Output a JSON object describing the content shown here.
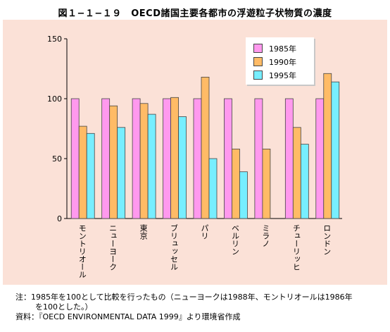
{
  "title": "図１−１−１９　OECD諸国主要各都市の浮遊粒子状物質の濃度",
  "colors": {
    "panel_background": "#fbe1d7",
    "series_1985": "#ff99ee",
    "series_1990": "#ffbb66",
    "series_1995": "#77eeff"
  },
  "chart_data": {
    "type": "bar",
    "title": "",
    "xlabel": "",
    "ylabel": "",
    "ylim": [
      0,
      150
    ],
    "yticks": [
      0,
      50,
      100,
      150
    ],
    "grid": false,
    "legend_position": "top-right",
    "categories": [
      "モントリオール",
      "ニューヨーク",
      "東京",
      "ブリュッセル",
      "パリ",
      "ベルリン",
      "ミラノ",
      "チューリッヒ",
      "ロンドン"
    ],
    "series": [
      {
        "name": "1985年",
        "color": "#ff99ee",
        "values": [
          100,
          100,
          100,
          100,
          100,
          100,
          100,
          100,
          100
        ]
      },
      {
        "name": "1990年",
        "color": "#ffbb66",
        "values": [
          77,
          94,
          96,
          101,
          118,
          58,
          58,
          76,
          121
        ]
      },
      {
        "name": "1995年",
        "color": "#77eeff",
        "values": [
          71,
          76,
          87,
          85,
          50,
          39,
          null,
          62,
          114
        ]
      }
    ]
  },
  "notes": {
    "line1": "注：1985年を100として比較を行ったもの（ニューヨークは1988年、モントリオールは1986年",
    "line2": "を100とした。）",
    "line3": "資料：『OECD ENVIRONMENTAL DATA 1999』より環境省作成"
  }
}
